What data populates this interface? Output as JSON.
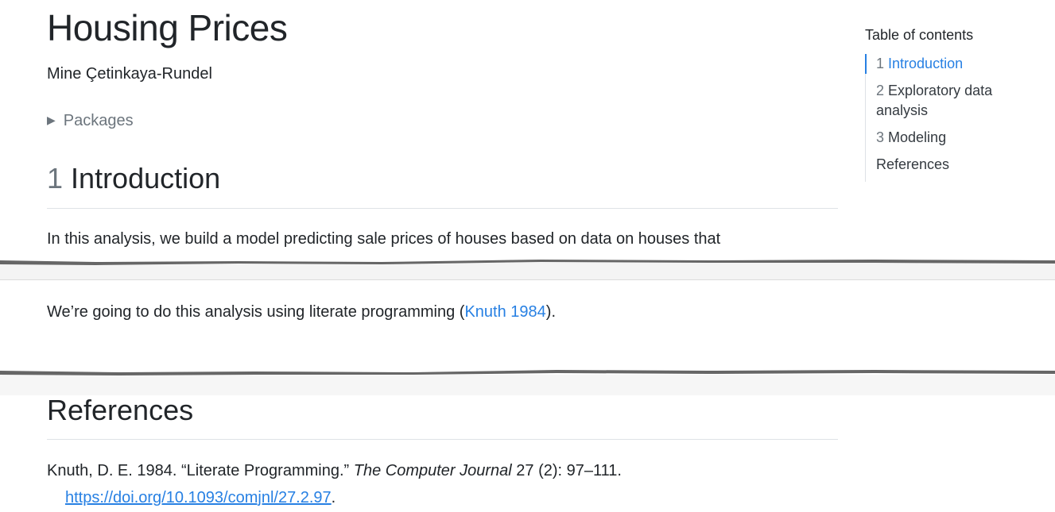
{
  "title": "Housing Prices",
  "author": "Mine Çetinkaya-Rundel",
  "packages_label": "Packages",
  "sections": {
    "intro": {
      "number": "1",
      "title": "Introduction"
    },
    "references": {
      "title": "References"
    }
  },
  "paragraphs": {
    "intro_1": "In this analysis, we build a model predicting sale prices of houses based on data on houses that",
    "intro_2_before": "We’re going to do this analysis using literate programming (",
    "intro_2_cite": "Knuth 1984",
    "intro_2_after": ")."
  },
  "reference": {
    "text_before": "Knuth, D. E. 1984. “Literate Programming.” ",
    "journal": "The Computer Journal",
    "text_after": " 27 (2): 97–111.",
    "doi": "https://doi.org/10.1093/comjnl/27.2.97",
    "doi_after": "."
  },
  "toc": {
    "heading": "Table of contents",
    "items": [
      {
        "number": "1",
        "label": "Introduction",
        "active": true
      },
      {
        "number": "2",
        "label": "Exploratory data analysis"
      },
      {
        "number": "3",
        "label": "Modeling"
      },
      {
        "number": "",
        "label": "References"
      }
    ]
  },
  "colors": {
    "link": "#2780e3",
    "text": "#212529",
    "muted": "#6c757d"
  }
}
